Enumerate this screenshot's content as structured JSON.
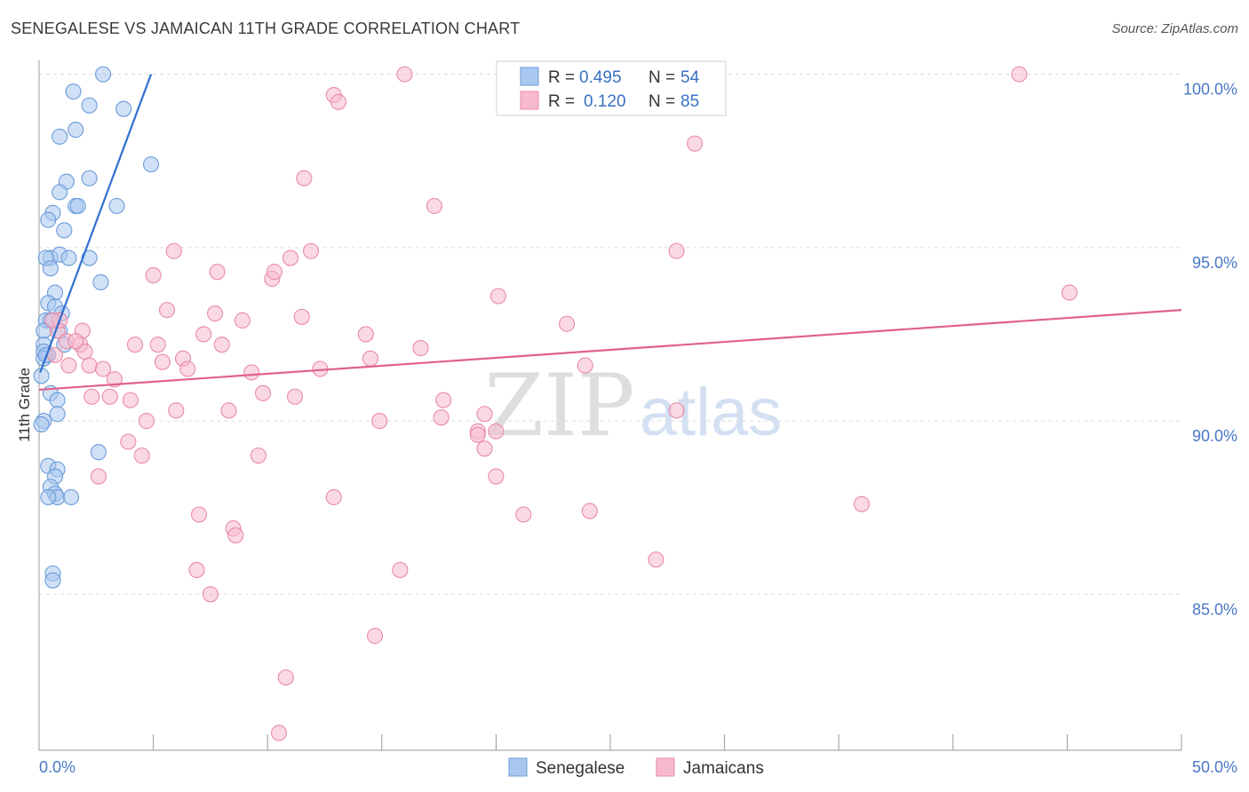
{
  "title": "SENEGALESE VS JAMAICAN 11TH GRADE CORRELATION CHART",
  "source": "Source: ZipAtlas.com",
  "watermark": {
    "zip": "ZIP",
    "atlas": "atlas"
  },
  "legend": {
    "r_label": "R =",
    "n_label": "N =",
    "entries": [
      {
        "r": "0.495",
        "n": "54",
        "color": "#a9c8f0",
        "stroke": "#6a9bd8"
      },
      {
        "r": "0.120",
        "n": "85",
        "color": "#f7b9cd",
        "stroke": "#e889a9"
      }
    ]
  },
  "bottom_legend": [
    "Senegalese",
    "Jamaicans"
  ],
  "chart_data": {
    "type": "scatter",
    "title": "SENEGALESE VS JAMAICAN 11TH GRADE CORRELATION CHART",
    "xlabel": "",
    "ylabel": "11th Grade",
    "xlim": [
      0,
      50
    ],
    "ylim": [
      80.5,
      100.4
    ],
    "x_tick_labels": [
      {
        "v": 0,
        "label": "0.0%"
      },
      {
        "v": 50,
        "label": "50.0%"
      }
    ],
    "y_tick_labels": [
      {
        "v": 85,
        "label": "85.0%"
      },
      {
        "v": 90,
        "label": "90.0%"
      },
      {
        "v": 95,
        "label": "95.0%"
      },
      {
        "v": 100,
        "label": "100.0%"
      }
    ],
    "series": [
      {
        "name": "Senegalese",
        "color": "#a9c8f0",
        "stroke": "#6a9bd8",
        "line_color": "#2f6fd0",
        "trend": {
          "x0": 0.05,
          "y0": 91.4,
          "x1": 4.9,
          "y1": 100.0
        },
        "points": [
          [
            2.8,
            100.0
          ],
          [
            1.5,
            99.5
          ],
          [
            2.2,
            99.1
          ],
          [
            3.7,
            99.0
          ],
          [
            0.9,
            98.2
          ],
          [
            1.6,
            98.4
          ],
          [
            4.9,
            97.4
          ],
          [
            2.2,
            97.0
          ],
          [
            1.2,
            96.9
          ],
          [
            0.9,
            96.6
          ],
          [
            1.6,
            96.2
          ],
          [
            1.7,
            96.2
          ],
          [
            3.4,
            96.2
          ],
          [
            0.6,
            96.0
          ],
          [
            0.4,
            95.8
          ],
          [
            1.1,
            95.5
          ],
          [
            0.5,
            94.7
          ],
          [
            0.9,
            94.8
          ],
          [
            1.3,
            94.7
          ],
          [
            2.2,
            94.7
          ],
          [
            0.3,
            94.7
          ],
          [
            0.5,
            94.4
          ],
          [
            2.7,
            94.0
          ],
          [
            0.7,
            93.7
          ],
          [
            0.4,
            93.4
          ],
          [
            0.7,
            93.3
          ],
          [
            1.0,
            93.1
          ],
          [
            0.3,
            92.9
          ],
          [
            0.5,
            92.9
          ],
          [
            0.2,
            92.6
          ],
          [
            1.1,
            92.2
          ],
          [
            0.2,
            92.2
          ],
          [
            0.2,
            92.0
          ],
          [
            0.4,
            91.9
          ],
          [
            0.2,
            91.8
          ],
          [
            0.1,
            91.3
          ],
          [
            0.5,
            90.8
          ],
          [
            0.8,
            90.6
          ],
          [
            0.8,
            90.2
          ],
          [
            0.2,
            90.0
          ],
          [
            0.1,
            89.9
          ],
          [
            2.6,
            89.1
          ],
          [
            0.4,
            88.7
          ],
          [
            0.8,
            88.6
          ],
          [
            0.7,
            88.4
          ],
          [
            0.5,
            88.1
          ],
          [
            0.7,
            87.9
          ],
          [
            0.8,
            87.8
          ],
          [
            1.4,
            87.8
          ],
          [
            0.6,
            85.6
          ],
          [
            0.6,
            85.4
          ],
          [
            0.4,
            87.8
          ],
          [
            0.3,
            91.9
          ],
          [
            0.9,
            92.6
          ]
        ]
      },
      {
        "name": "Jamaicans",
        "color": "#f7b9cd",
        "stroke": "#e889a9",
        "line_color": "#e0608f",
        "trend": {
          "x0": 0.0,
          "y0": 90.9,
          "x1": 50.0,
          "y1": 93.2
        },
        "points": [
          [
            16.0,
            100.0
          ],
          [
            27.2,
            100.0
          ],
          [
            42.9,
            100.0
          ],
          [
            12.9,
            99.4
          ],
          [
            13.1,
            99.2
          ],
          [
            28.7,
            98.0
          ],
          [
            11.6,
            97.0
          ],
          [
            17.3,
            96.2
          ],
          [
            5.9,
            94.9
          ],
          [
            11.9,
            94.9
          ],
          [
            27.9,
            94.9
          ],
          [
            11.0,
            94.7
          ],
          [
            5.0,
            94.2
          ],
          [
            7.8,
            94.3
          ],
          [
            10.2,
            94.1
          ],
          [
            10.3,
            94.3
          ],
          [
            20.1,
            93.6
          ],
          [
            45.1,
            93.7
          ],
          [
            5.6,
            93.2
          ],
          [
            7.7,
            93.1
          ],
          [
            8.9,
            92.9
          ],
          [
            11.5,
            93.0
          ],
          [
            23.1,
            92.8
          ],
          [
            0.8,
            92.6
          ],
          [
            1.9,
            92.6
          ],
          [
            7.2,
            92.5
          ],
          [
            14.3,
            92.5
          ],
          [
            1.2,
            92.3
          ],
          [
            1.8,
            92.2
          ],
          [
            4.2,
            92.2
          ],
          [
            5.2,
            92.2
          ],
          [
            8.0,
            92.2
          ],
          [
            2.0,
            92.0
          ],
          [
            16.7,
            92.1
          ],
          [
            0.7,
            91.9
          ],
          [
            6.3,
            91.8
          ],
          [
            14.5,
            91.8
          ],
          [
            5.4,
            91.7
          ],
          [
            2.2,
            91.6
          ],
          [
            1.3,
            91.6
          ],
          [
            2.8,
            91.5
          ],
          [
            6.5,
            91.5
          ],
          [
            12.3,
            91.5
          ],
          [
            23.9,
            91.6
          ],
          [
            9.3,
            91.4
          ],
          [
            3.3,
            91.2
          ],
          [
            9.8,
            90.8
          ],
          [
            11.2,
            90.7
          ],
          [
            3.1,
            90.7
          ],
          [
            4.0,
            90.6
          ],
          [
            17.7,
            90.6
          ],
          [
            8.3,
            90.3
          ],
          [
            6.0,
            90.3
          ],
          [
            27.9,
            90.3
          ],
          [
            19.5,
            90.2
          ],
          [
            4.7,
            90.0
          ],
          [
            14.9,
            90.0
          ],
          [
            17.6,
            90.1
          ],
          [
            19.2,
            89.7
          ],
          [
            20.0,
            89.7
          ],
          [
            19.2,
            89.6
          ],
          [
            3.9,
            89.4
          ],
          [
            19.5,
            89.2
          ],
          [
            4.5,
            89.0
          ],
          [
            9.6,
            89.0
          ],
          [
            2.6,
            88.4
          ],
          [
            20.0,
            88.4
          ],
          [
            12.9,
            87.8
          ],
          [
            24.1,
            87.4
          ],
          [
            36.0,
            87.6
          ],
          [
            7.0,
            87.3
          ],
          [
            21.2,
            87.3
          ],
          [
            8.5,
            86.9
          ],
          [
            8.6,
            86.7
          ],
          [
            27.0,
            86.0
          ],
          [
            6.9,
            85.7
          ],
          [
            15.8,
            85.7
          ],
          [
            7.5,
            85.0
          ],
          [
            14.7,
            83.8
          ],
          [
            10.8,
            82.6
          ],
          [
            10.5,
            81.0
          ],
          [
            0.9,
            92.9
          ],
          [
            1.6,
            92.3
          ],
          [
            2.3,
            90.7
          ],
          [
            0.6,
            92.9
          ]
        ]
      }
    ]
  }
}
